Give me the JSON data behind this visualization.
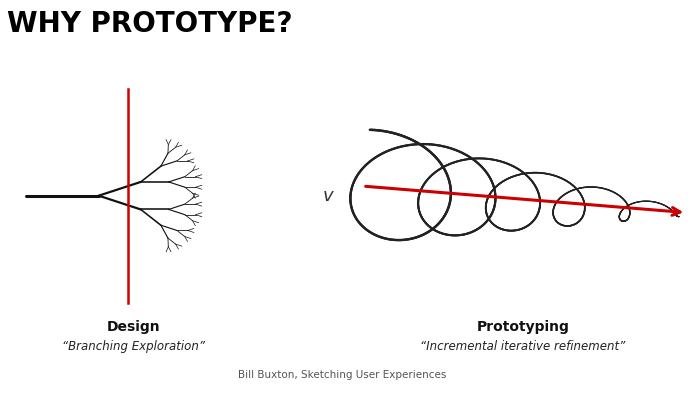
{
  "title": "WHY PROTOTYPE?",
  "title_fontsize": 20,
  "background_color": "#ffffff",
  "design_label": "Design",
  "design_sublabel": "“Branching Exploration”",
  "proto_label": "Prototyping",
  "proto_sublabel": "“Incremental iterative refinement”",
  "v_label": "v",
  "citation": "Bill Buxton, Sketching User Experiences",
  "tree_color": "#111111",
  "red_color": "#cc0000",
  "spiral_color": "#222222"
}
